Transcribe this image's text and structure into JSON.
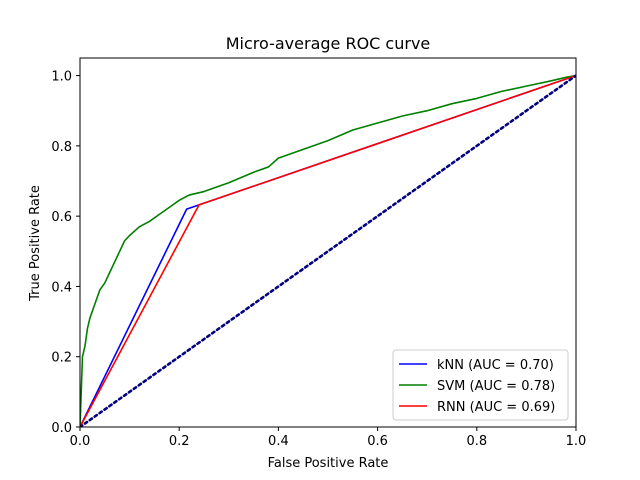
{
  "chart_data": {
    "type": "line",
    "title": "Micro-average ROC curve",
    "xlabel": "False Positive Rate",
    "ylabel": "True Positive Rate",
    "xlim": [
      0,
      1
    ],
    "ylim": [
      0,
      1.05
    ],
    "xticks": [
      0,
      0.2,
      0.4,
      0.6,
      0.8,
      1.0
    ],
    "yticks": [
      0,
      0.2,
      0.4,
      0.6,
      0.8,
      1.0
    ],
    "xtick_labels": [
      "0.0",
      "0.2",
      "0.4",
      "0.6",
      "0.8",
      "1.0"
    ],
    "ytick_labels": [
      "0.0",
      "0.2",
      "0.4",
      "0.6",
      "0.8",
      "1.0"
    ],
    "grid": false,
    "legend_position": "lower-right",
    "series": [
      {
        "name": "kNN (AUC = 0.70)",
        "color": "#0000ff",
        "style": "solid",
        "x": [
          0,
          0.215,
          0.24,
          1.0
        ],
        "y": [
          0,
          0.62,
          0.632,
          1.0
        ]
      },
      {
        "name": "SVM (AUC = 0.78)",
        "color": "#008000",
        "style": "solid",
        "x": [
          0,
          0.005,
          0.01,
          0.015,
          0.02,
          0.03,
          0.04,
          0.05,
          0.06,
          0.07,
          0.08,
          0.09,
          0.1,
          0.12,
          0.14,
          0.16,
          0.18,
          0.2,
          0.22,
          0.25,
          0.3,
          0.35,
          0.38,
          0.4,
          0.45,
          0.5,
          0.55,
          0.6,
          0.65,
          0.7,
          0.75,
          0.8,
          0.85,
          0.9,
          0.95,
          0.98,
          1.0
        ],
        "y": [
          0,
          0.2,
          0.23,
          0.28,
          0.31,
          0.35,
          0.39,
          0.41,
          0.44,
          0.47,
          0.5,
          0.53,
          0.545,
          0.57,
          0.585,
          0.605,
          0.625,
          0.645,
          0.66,
          0.67,
          0.695,
          0.725,
          0.74,
          0.765,
          0.79,
          0.815,
          0.845,
          0.865,
          0.885,
          0.9,
          0.92,
          0.935,
          0.955,
          0.97,
          0.985,
          0.995,
          1.0
        ]
      },
      {
        "name": "RNN (AUC = 0.69)",
        "color": "#ff0000",
        "style": "solid",
        "x": [
          0,
          0.24,
          1.0
        ],
        "y": [
          0,
          0.632,
          1.0
        ]
      },
      {
        "color": "#000080",
        "style": "dotted",
        "x": [
          0,
          1
        ],
        "y": [
          0,
          1
        ]
      }
    ]
  }
}
